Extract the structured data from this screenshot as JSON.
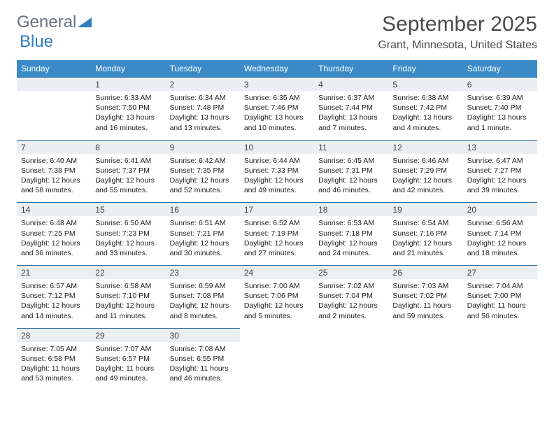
{
  "logo": {
    "part1": "General",
    "part2": "Blue"
  },
  "title": "September 2025",
  "location": "Grant, Minnesota, United States",
  "colors": {
    "header_bg": "#3b8bc9",
    "header_text": "#ffffff",
    "daynum_bg": "#eceff2",
    "border_top": "#2b6ea3",
    "text": "#222222",
    "logo_gray": "#6b7280",
    "logo_blue": "#2f7fc0"
  },
  "day_names": [
    "Sunday",
    "Monday",
    "Tuesday",
    "Wednesday",
    "Thursday",
    "Friday",
    "Saturday"
  ],
  "weeks": [
    [
      {
        "num": "",
        "lines": []
      },
      {
        "num": "1",
        "lines": [
          "Sunrise: 6:33 AM",
          "Sunset: 7:50 PM",
          "Daylight: 13 hours and 16 minutes."
        ]
      },
      {
        "num": "2",
        "lines": [
          "Sunrise: 6:34 AM",
          "Sunset: 7:48 PM",
          "Daylight: 13 hours and 13 minutes."
        ]
      },
      {
        "num": "3",
        "lines": [
          "Sunrise: 6:35 AM",
          "Sunset: 7:46 PM",
          "Daylight: 13 hours and 10 minutes."
        ]
      },
      {
        "num": "4",
        "lines": [
          "Sunrise: 6:37 AM",
          "Sunset: 7:44 PM",
          "Daylight: 13 hours and 7 minutes."
        ]
      },
      {
        "num": "5",
        "lines": [
          "Sunrise: 6:38 AM",
          "Sunset: 7:42 PM",
          "Daylight: 13 hours and 4 minutes."
        ]
      },
      {
        "num": "6",
        "lines": [
          "Sunrise: 6:39 AM",
          "Sunset: 7:40 PM",
          "Daylight: 13 hours and 1 minute."
        ]
      }
    ],
    [
      {
        "num": "7",
        "lines": [
          "Sunrise: 6:40 AM",
          "Sunset: 7:38 PM",
          "Daylight: 12 hours and 58 minutes."
        ]
      },
      {
        "num": "8",
        "lines": [
          "Sunrise: 6:41 AM",
          "Sunset: 7:37 PM",
          "Daylight: 12 hours and 55 minutes."
        ]
      },
      {
        "num": "9",
        "lines": [
          "Sunrise: 6:42 AM",
          "Sunset: 7:35 PM",
          "Daylight: 12 hours and 52 minutes."
        ]
      },
      {
        "num": "10",
        "lines": [
          "Sunrise: 6:44 AM",
          "Sunset: 7:33 PM",
          "Daylight: 12 hours and 49 minutes."
        ]
      },
      {
        "num": "11",
        "lines": [
          "Sunrise: 6:45 AM",
          "Sunset: 7:31 PM",
          "Daylight: 12 hours and 46 minutes."
        ]
      },
      {
        "num": "12",
        "lines": [
          "Sunrise: 6:46 AM",
          "Sunset: 7:29 PM",
          "Daylight: 12 hours and 42 minutes."
        ]
      },
      {
        "num": "13",
        "lines": [
          "Sunrise: 6:47 AM",
          "Sunset: 7:27 PM",
          "Daylight: 12 hours and 39 minutes."
        ]
      }
    ],
    [
      {
        "num": "14",
        "lines": [
          "Sunrise: 6:48 AM",
          "Sunset: 7:25 PM",
          "Daylight: 12 hours and 36 minutes."
        ]
      },
      {
        "num": "15",
        "lines": [
          "Sunrise: 6:50 AM",
          "Sunset: 7:23 PM",
          "Daylight: 12 hours and 33 minutes."
        ]
      },
      {
        "num": "16",
        "lines": [
          "Sunrise: 6:51 AM",
          "Sunset: 7:21 PM",
          "Daylight: 12 hours and 30 minutes."
        ]
      },
      {
        "num": "17",
        "lines": [
          "Sunrise: 6:52 AM",
          "Sunset: 7:19 PM",
          "Daylight: 12 hours and 27 minutes."
        ]
      },
      {
        "num": "18",
        "lines": [
          "Sunrise: 6:53 AM",
          "Sunset: 7:18 PM",
          "Daylight: 12 hours and 24 minutes."
        ]
      },
      {
        "num": "19",
        "lines": [
          "Sunrise: 6:54 AM",
          "Sunset: 7:16 PM",
          "Daylight: 12 hours and 21 minutes."
        ]
      },
      {
        "num": "20",
        "lines": [
          "Sunrise: 6:56 AM",
          "Sunset: 7:14 PM",
          "Daylight: 12 hours and 18 minutes."
        ]
      }
    ],
    [
      {
        "num": "21",
        "lines": [
          "Sunrise: 6:57 AM",
          "Sunset: 7:12 PM",
          "Daylight: 12 hours and 14 minutes."
        ]
      },
      {
        "num": "22",
        "lines": [
          "Sunrise: 6:58 AM",
          "Sunset: 7:10 PM",
          "Daylight: 12 hours and 11 minutes."
        ]
      },
      {
        "num": "23",
        "lines": [
          "Sunrise: 6:59 AM",
          "Sunset: 7:08 PM",
          "Daylight: 12 hours and 8 minutes."
        ]
      },
      {
        "num": "24",
        "lines": [
          "Sunrise: 7:00 AM",
          "Sunset: 7:06 PM",
          "Daylight: 12 hours and 5 minutes."
        ]
      },
      {
        "num": "25",
        "lines": [
          "Sunrise: 7:02 AM",
          "Sunset: 7:04 PM",
          "Daylight: 12 hours and 2 minutes."
        ]
      },
      {
        "num": "26",
        "lines": [
          "Sunrise: 7:03 AM",
          "Sunset: 7:02 PM",
          "Daylight: 11 hours and 59 minutes."
        ]
      },
      {
        "num": "27",
        "lines": [
          "Sunrise: 7:04 AM",
          "Sunset: 7:00 PM",
          "Daylight: 11 hours and 56 minutes."
        ]
      }
    ],
    [
      {
        "num": "28",
        "lines": [
          "Sunrise: 7:05 AM",
          "Sunset: 6:58 PM",
          "Daylight: 11 hours and 53 minutes."
        ]
      },
      {
        "num": "29",
        "lines": [
          "Sunrise: 7:07 AM",
          "Sunset: 6:57 PM",
          "Daylight: 11 hours and 49 minutes."
        ]
      },
      {
        "num": "30",
        "lines": [
          "Sunrise: 7:08 AM",
          "Sunset: 6:55 PM",
          "Daylight: 11 hours and 46 minutes."
        ]
      },
      {
        "num": "",
        "lines": []
      },
      {
        "num": "",
        "lines": []
      },
      {
        "num": "",
        "lines": []
      },
      {
        "num": "",
        "lines": []
      }
    ]
  ]
}
